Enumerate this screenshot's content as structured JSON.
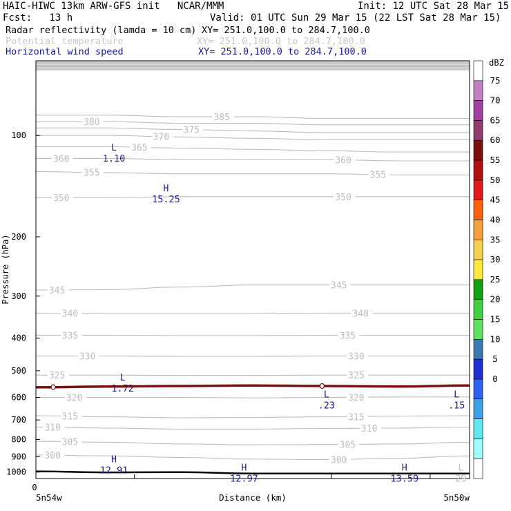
{
  "header": {
    "title_left": "HAIC-HIWC 13km ARW-GFS init   NCAR/MMM",
    "init": "Init: 12 UTC Sat 28 Mar 15",
    "fcst": "Fcst:   13 h",
    "valid": "Valid: 01 UTC Sun 29 Mar 15 (22 LST Sat 28 Mar 15)"
  },
  "fields": [
    {
      "name": "Radar reflectivity (lamda = 10 cm)",
      "xy": "XY= 251.0,100.0 to 284.7,100.0",
      "color": "#000000"
    },
    {
      "name": "Potential temperature",
      "xy": "XY= 251.0,100.0 to 284.7,100.0",
      "color": "#c8c8c8"
    },
    {
      "name": "Horizontal wind speed",
      "xy": "XY= 251.0,100.0 to 284.7,100.0",
      "color": "#1a1a8c"
    }
  ],
  "chart_data": {
    "type": "line",
    "title": "HAIC-HIWC 13km ARW-GFS init",
    "xlabel": "Distance (km)",
    "ylabel": "Pressure (hPa)",
    "x_tick_labels": [
      "0"
    ],
    "x_end_labels": [
      "5n54w",
      "5n50w"
    ],
    "y_ticks": [
      100,
      200,
      300,
      400,
      500,
      600,
      700,
      800,
      900,
      1000
    ],
    "ylim": [
      50,
      1050
    ],
    "y_scale": "log",
    "colorbar": {
      "unit": "dBZ",
      "labels": [
        "75",
        "70",
        "65",
        "60",
        "55",
        "50",
        "45",
        "40",
        "35",
        "30",
        "25",
        "20",
        "15",
        "10",
        "5",
        "0"
      ],
      "colors": [
        "#ffffff",
        "#c080c0",
        "#a040a0",
        "#903c6c",
        "#7a1010",
        "#b01010",
        "#e01818",
        "#ff6010",
        "#f5a040",
        "#f5d050",
        "#ffe840",
        "#10a010",
        "#40d040",
        "#60e060",
        "#3c7ab4",
        "#2030d0",
        "#3060f0",
        "#40a0e8",
        "#60e8f0",
        "#a0fcfc",
        "#ffffff"
      ]
    },
    "potential_temperature_contours": [
      {
        "value": 300,
        "p": [
          890,
          895,
          905,
          915,
          918,
          910,
          895
        ]
      },
      {
        "value": 305,
        "p": [
          810,
          815,
          825,
          830,
          828,
          825,
          815
        ]
      },
      {
        "value": 310,
        "p": [
          735,
          740,
          745,
          745,
          742,
          740,
          735
        ]
      },
      {
        "value": 315,
        "p": [
          680,
          685,
          690,
          688,
          685,
          682,
          680
        ]
      },
      {
        "value": 320,
        "p": [
          600,
          600,
          600,
          602,
          600,
          598,
          598
        ]
      },
      {
        "value": 325,
        "p": [
          515,
          515,
          516,
          516,
          515,
          515,
          515
        ]
      },
      {
        "value": 330,
        "p": [
          452,
          452,
          453,
          453,
          452,
          452,
          452
        ]
      },
      {
        "value": 335,
        "p": [
          392,
          392,
          393,
          393,
          392,
          392,
          392
        ]
      },
      {
        "value": 340,
        "p": [
          337,
          338,
          338,
          338,
          337,
          337,
          337
        ]
      },
      {
        "value": 345,
        "p": [
          288,
          287,
          282,
          278,
          278,
          278,
          278
        ]
      },
      {
        "value": 350,
        "p": [
          153,
          153,
          152,
          152,
          152,
          152,
          152
        ]
      },
      {
        "value": 355,
        "p": [
          128,
          129,
          130,
          130,
          130,
          131,
          131
        ]
      },
      {
        "value": 360,
        "p": [
          117,
          117,
          118,
          118,
          118,
          119,
          119
        ]
      },
      {
        "value": 365,
        "p": [
          108,
          108,
          109,
          110,
          111,
          112,
          112
        ]
      },
      {
        "value": 370,
        "p": [
          100,
          100,
          101,
          102,
          103,
          103,
          103
        ]
      },
      {
        "value": 375,
        "p": [
          95,
          95,
          96,
          97,
          98,
          98,
          98
        ]
      },
      {
        "value": 380,
        "p": [
          91,
          91,
          92,
          92,
          93,
          93,
          93
        ]
      },
      {
        "value": 385,
        "p": [
          87,
          87,
          88,
          88,
          89,
          89,
          89
        ]
      }
    ],
    "reflectivity_band": {
      "dbz": 60,
      "p": [
        560,
        557,
        555,
        553,
        555,
        557,
        553
      ]
    },
    "surface_pressure": {
      "p": [
        995,
        1002,
        1000,
        1010,
        1010,
        1010,
        1010
      ]
    },
    "wind_extrema": [
      {
        "kind": "L",
        "value": "1.10",
        "xf": 0.18,
        "p": 112
      },
      {
        "kind": "H",
        "value": "15.25",
        "xf": 0.3,
        "p": 148
      },
      {
        "kind": "L",
        "value": "1.72",
        "xf": 0.2,
        "p": 540
      },
      {
        "kind": "L",
        "value": ".23",
        "xf": 0.67,
        "p": 605
      },
      {
        "kind": "L",
        "value": ".15",
        "xf": 0.97,
        "p": 605
      },
      {
        "kind": "H",
        "value": "12.91",
        "xf": 0.18,
        "p": 945
      },
      {
        "kind": "H",
        "value": "12.97",
        "xf": 0.48,
        "p": 1000
      },
      {
        "kind": "H",
        "value": "13.59",
        "xf": 0.85,
        "p": 1000
      },
      {
        "kind": "L",
        "value": "29",
        "xf": 0.98,
        "p": 1000
      }
    ]
  }
}
